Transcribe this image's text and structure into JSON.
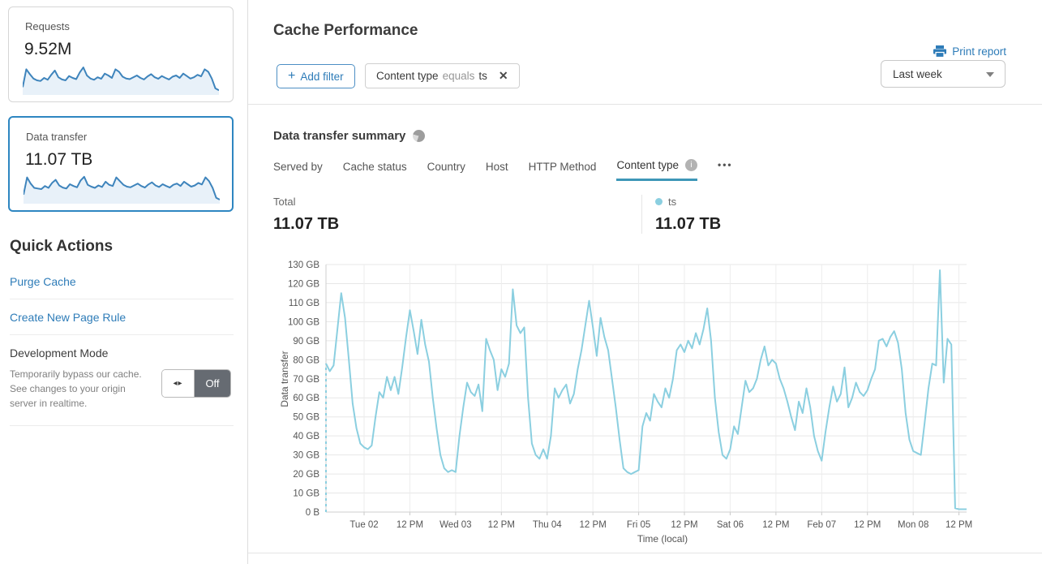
{
  "colors": {
    "accent_blue": "#2e7cb8",
    "tab_underline": "#3e97b8",
    "series_line": "#8bcfe0",
    "sparkline_line": "#3e84bc",
    "sparkline_fill": "#e8f1f9",
    "selected_card_border": "#2e86c1",
    "grid_line": "#e7e7e7",
    "toggle_dark": "#666b72"
  },
  "sidebar": {
    "cards": [
      {
        "label": "Requests",
        "value": "9.52M",
        "selected": false,
        "spark": [
          20,
          78,
          62,
          48,
          42,
          40,
          50,
          44,
          60,
          74,
          52,
          45,
          42,
          56,
          50,
          46,
          68,
          84,
          58,
          48,
          44,
          52,
          47,
          64,
          58,
          50,
          78,
          70,
          54,
          48,
          46,
          52,
          58,
          50,
          45,
          55,
          62,
          52,
          47,
          56,
          50,
          45,
          54,
          58,
          50,
          64,
          56,
          48,
          52,
          60,
          55,
          78,
          70,
          48,
          16,
          10
        ]
      },
      {
        "label": "Data transfer",
        "value": "11.07 TB",
        "selected": true,
        "spark": [
          24,
          80,
          60,
          46,
          44,
          42,
          52,
          46,
          62,
          72,
          54,
          47,
          44,
          58,
          52,
          48,
          70,
          82,
          56,
          50,
          46,
          54,
          49,
          66,
          56,
          52,
          80,
          68,
          56,
          50,
          48,
          54,
          60,
          52,
          47,
          57,
          64,
          54,
          49,
          58,
          52,
          47,
          56,
          60,
          52,
          66,
          58,
          50,
          54,
          62,
          57,
          80,
          68,
          46,
          14,
          8
        ]
      }
    ],
    "quick_actions": {
      "title": "Quick Actions",
      "links": [
        {
          "label": "Purge Cache"
        },
        {
          "label": "Create New Page Rule"
        }
      ],
      "dev_mode": {
        "title": "Development Mode",
        "description": "Temporarily bypass our cache. See changes to your origin server in realtime.",
        "toggle_arrows": "◂▸",
        "toggle_state": "Off"
      }
    }
  },
  "header": {
    "title": "Cache Performance",
    "print_label": "Print report"
  },
  "filters": {
    "add_label": "Add filter",
    "add_plus": "+",
    "chip": {
      "field": "Content type",
      "operator": "equals",
      "value": "ts",
      "close": "✕"
    },
    "time_range": "Last week"
  },
  "summary": {
    "title": "Data transfer summary",
    "tabs": [
      {
        "label": "Served by",
        "active": false
      },
      {
        "label": "Cache status",
        "active": false
      },
      {
        "label": "Country",
        "active": false
      },
      {
        "label": "Host",
        "active": false
      },
      {
        "label": "HTTP Method",
        "active": false
      },
      {
        "label": "Content type",
        "active": true,
        "has_info": true
      }
    ],
    "more_label": "•••",
    "totals": [
      {
        "label": "Total",
        "value": "11.07 TB",
        "dot": false
      },
      {
        "label": "ts",
        "value": "11.07 TB",
        "dot": true,
        "dot_color": "#8bcfe0"
      }
    ]
  },
  "chart_data": {
    "type": "line",
    "title": "Data transfer summary — ts",
    "xlabel": "Time (local)",
    "ylabel": "Data transfer",
    "unit": "GB",
    "ylim_gb": [
      0,
      130
    ],
    "ytick_step_gb": 10,
    "ytick_labels": [
      "0 B",
      "10 GB",
      "20 GB",
      "30 GB",
      "40 GB",
      "50 GB",
      "60 GB",
      "70 GB",
      "80 GB",
      "90 GB",
      "100 GB",
      "110 GB",
      "120 GB",
      "130 GB"
    ],
    "grid": true,
    "legend_position": "top-right",
    "interval_hours": 1,
    "start_time": "Mon Feb 01 14:00",
    "xticks": [
      {
        "i": 10,
        "label": "Tue 02"
      },
      {
        "i": 22,
        "label": "12 PM"
      },
      {
        "i": 34,
        "label": "Wed 03"
      },
      {
        "i": 46,
        "label": "12 PM"
      },
      {
        "i": 58,
        "label": "Thu 04"
      },
      {
        "i": 70,
        "label": "12 PM"
      },
      {
        "i": 82,
        "label": "Fri 05"
      },
      {
        "i": 94,
        "label": "12 PM"
      },
      {
        "i": 106,
        "label": "Sat 06"
      },
      {
        "i": 118,
        "label": "12 PM"
      },
      {
        "i": 130,
        "label": "Feb 07"
      },
      {
        "i": 142,
        "label": "12 PM"
      },
      {
        "i": 154,
        "label": "Mon 08"
      },
      {
        "i": 166,
        "label": "12 PM"
      }
    ],
    "series": [
      {
        "name": "ts",
        "color": "#8bcfe0",
        "leading_dashed": true,
        "values_gb": [
          78,
          74,
          77,
          96,
          115,
          102,
          80,
          57,
          44,
          36,
          34,
          33,
          35,
          50,
          63,
          60,
          71,
          64,
          71,
          62,
          76,
          92,
          106,
          95,
          83,
          101,
          88,
          79,
          60,
          44,
          30,
          23,
          21,
          22,
          21,
          40,
          55,
          68,
          63,
          61,
          67,
          53,
          91,
          85,
          80,
          64,
          75,
          71,
          78,
          117,
          98,
          94,
          97,
          60,
          36,
          30,
          28,
          33,
          28,
          40,
          65,
          60,
          64,
          67,
          57,
          62,
          75,
          85,
          98,
          111,
          97,
          82,
          102,
          92,
          85,
          70,
          55,
          38,
          23,
          21,
          20,
          21,
          22,
          45,
          52,
          48,
          62,
          58,
          55,
          65,
          60,
          70,
          85,
          88,
          84,
          90,
          86,
          94,
          88,
          96,
          107,
          90,
          60,
          42,
          30,
          28,
          33,
          45,
          41,
          55,
          69,
          63,
          65,
          70,
          80,
          87,
          77,
          80,
          78,
          70,
          65,
          58,
          50,
          43,
          58,
          52,
          65,
          55,
          40,
          32,
          27,
          42,
          55,
          66,
          58,
          62,
          76,
          55,
          60,
          68,
          63,
          61,
          64,
          70,
          75,
          90,
          91,
          87,
          92,
          95,
          89,
          75,
          52,
          38,
          32,
          31,
          30,
          47,
          65,
          78,
          77,
          127,
          68,
          91,
          88,
          2,
          1.5,
          1.5,
          1.5
        ]
      }
    ]
  }
}
